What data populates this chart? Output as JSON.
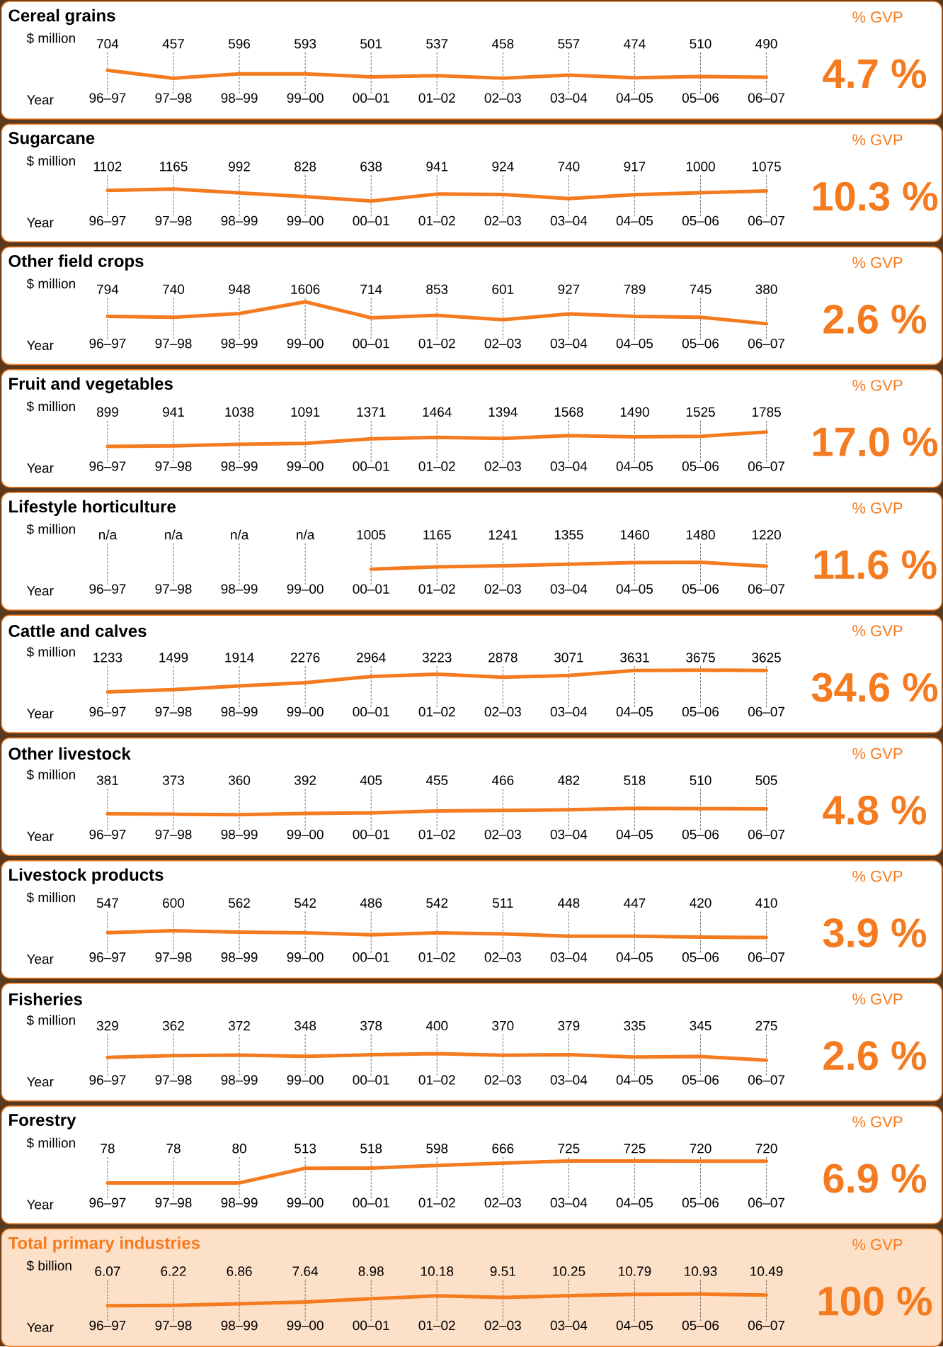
{
  "chart_data": [
    {
      "type": "line",
      "grid": "x",
      "title": "Cereal grains",
      "ylabel": "$ million",
      "xlabel": "Year",
      "annotations": [
        "% GVP",
        "4.7 %"
      ],
      "tick_labels": "x",
      "color": "#f47b20",
      "categories": [
        "96–97",
        "97–98",
        "98–99",
        "99–00",
        "00–01",
        "01–02",
        "02–03",
        "03–04",
        "04–05",
        "05–06",
        "06–07"
      ],
      "values": [
        704,
        457,
        596,
        593,
        501,
        537,
        458,
        557,
        474,
        510,
        490
      ],
      "value_labels": [
        "704",
        "457",
        "596",
        "593",
        "501",
        "537",
        "458",
        "557",
        "474",
        "510",
        "490"
      ]
    },
    {
      "type": "line",
      "grid": "x",
      "title": "Sugarcane",
      "ylabel": "$ million",
      "xlabel": "Year",
      "annotations": [
        "% GVP",
        "10.3 %"
      ],
      "tick_labels": "x",
      "color": "#f47b20",
      "categories": [
        "96–97",
        "97–98",
        "98–99",
        "99–00",
        "00–01",
        "01–02",
        "02–03",
        "03–04",
        "04–05",
        "05–06",
        "06–07"
      ],
      "values": [
        1102,
        1165,
        992,
        828,
        638,
        941,
        924,
        740,
        917,
        1000,
        1075
      ],
      "value_labels": [
        "1102",
        "1165",
        "992",
        "828",
        "638",
        "941",
        "924",
        "740",
        "917",
        "1000",
        "1075"
      ]
    },
    {
      "type": "line",
      "grid": "x",
      "title": "Other field crops",
      "ylabel": "$ million",
      "xlabel": "Year",
      "annotations": [
        "% GVP",
        "2.6 %"
      ],
      "tick_labels": "x",
      "color": "#f47b20",
      "categories": [
        "96–97",
        "97–98",
        "98–99",
        "99–00",
        "00–01",
        "01–02",
        "02–03",
        "03–04",
        "04–05",
        "05–06",
        "06–07"
      ],
      "values": [
        794,
        740,
        948,
        1606,
        714,
        853,
        601,
        927,
        789,
        745,
        380
      ],
      "value_labels": [
        "794",
        "740",
        "948",
        "1606",
        "714",
        "853",
        "601",
        "927",
        "789",
        "745",
        "380"
      ]
    },
    {
      "type": "line",
      "grid": "x",
      "title": "Fruit and vegetables",
      "ylabel": "$ million",
      "xlabel": "Year",
      "annotations": [
        "% GVP",
        "17.0 %"
      ],
      "tick_labels": "x",
      "color": "#f47b20",
      "categories": [
        "96–97",
        "97–98",
        "98–99",
        "99–00",
        "00–01",
        "01–02",
        "02–03",
        "03–04",
        "04–05",
        "05–06",
        "06–07"
      ],
      "values": [
        899,
        941,
        1038,
        1091,
        1371,
        1464,
        1394,
        1568,
        1490,
        1525,
        1785
      ],
      "value_labels": [
        "899",
        "941",
        "1038",
        "1091",
        "1371",
        "1464",
        "1394",
        "1568",
        "1490",
        "1525",
        "1785"
      ]
    },
    {
      "type": "line",
      "grid": "x",
      "title": "Lifestyle horticulture",
      "ylabel": "$ million",
      "xlabel": "Year",
      "annotations": [
        "% GVP",
        "11.6 %"
      ],
      "tick_labels": "x",
      "color": "#f47b20",
      "categories": [
        "96–97",
        "97–98",
        "98–99",
        "99–00",
        "00–01",
        "01–02",
        "02–03",
        "03–04",
        "04–05",
        "05–06",
        "06–07"
      ],
      "values": [
        null,
        null,
        null,
        null,
        1005,
        1165,
        1241,
        1355,
        1460,
        1480,
        1220
      ],
      "value_labels": [
        "n/a",
        "n/a",
        "n/a",
        "n/a",
        "1005",
        "1165",
        "1241",
        "1355",
        "1460",
        "1480",
        "1220"
      ]
    },
    {
      "type": "line",
      "grid": "x",
      "title": "Cattle and calves",
      "ylabel": "$ million",
      "xlabel": "Year",
      "annotations": [
        "% GVP",
        "34.6 %"
      ],
      "tick_labels": "x",
      "color": "#f47b20",
      "categories": [
        "96–97",
        "97–98",
        "98–99",
        "99–00",
        "00–01",
        "01–02",
        "02–03",
        "03–04",
        "04–05",
        "05–06",
        "06–07"
      ],
      "values": [
        1233,
        1499,
        1914,
        2276,
        2964,
        3223,
        2878,
        3071,
        3631,
        3675,
        3625
      ],
      "value_labels": [
        "1233",
        "1499",
        "1914",
        "2276",
        "2964",
        "3223",
        "2878",
        "3071",
        "3631",
        "3675",
        "3625"
      ]
    },
    {
      "type": "line",
      "grid": "x",
      "title": "Other livestock",
      "ylabel": "$ million",
      "xlabel": "Year",
      "annotations": [
        "% GVP",
        "4.8 %"
      ],
      "tick_labels": "x",
      "color": "#f47b20",
      "categories": [
        "96–97",
        "97–98",
        "98–99",
        "99–00",
        "00–01",
        "01–02",
        "02–03",
        "03–04",
        "04–05",
        "05–06",
        "06–07"
      ],
      "values": [
        381,
        373,
        360,
        392,
        405,
        455,
        466,
        482,
        518,
        510,
        505
      ],
      "value_labels": [
        "381",
        "373",
        "360",
        "392",
        "405",
        "455",
        "466",
        "482",
        "518",
        "510",
        "505"
      ]
    },
    {
      "type": "line",
      "grid": "x",
      "title": "Livestock products",
      "ylabel": "$ million",
      "xlabel": "Year",
      "annotations": [
        "% GVP",
        "3.9 %"
      ],
      "tick_labels": "x",
      "color": "#f47b20",
      "categories": [
        "96–97",
        "97–98",
        "98–99",
        "99–00",
        "00–01",
        "01–02",
        "02–03",
        "03–04",
        "04–05",
        "05–06",
        "06–07"
      ],
      "values": [
        547,
        600,
        562,
        542,
        486,
        542,
        511,
        448,
        447,
        420,
        410
      ],
      "value_labels": [
        "547",
        "600",
        "562",
        "542",
        "486",
        "542",
        "511",
        "448",
        "447",
        "420",
        "410"
      ]
    },
    {
      "type": "line",
      "grid": "x",
      "title": "Fisheries",
      "ylabel": "$ million",
      "xlabel": "Year",
      "annotations": [
        "% GVP",
        "2.6 %"
      ],
      "tick_labels": "x",
      "color": "#f47b20",
      "categories": [
        "96–97",
        "97–98",
        "98–99",
        "99–00",
        "00–01",
        "01–02",
        "02–03",
        "03–04",
        "04–05",
        "05–06",
        "06–07"
      ],
      "values": [
        329,
        362,
        372,
        348,
        378,
        400,
        370,
        379,
        335,
        345,
        275
      ],
      "value_labels": [
        "329",
        "362",
        "372",
        "348",
        "378",
        "400",
        "370",
        "379",
        "335",
        "345",
        "275"
      ]
    },
    {
      "type": "line",
      "grid": "x",
      "title": "Forestry",
      "ylabel": "$ million",
      "xlabel": "Year",
      "annotations": [
        "% GVP",
        "6.9 %"
      ],
      "tick_labels": "x",
      "color": "#f47b20",
      "categories": [
        "96–97",
        "97–98",
        "98–99",
        "99–00",
        "00–01",
        "01–02",
        "02–03",
        "03–04",
        "04–05",
        "05–06",
        "06–07"
      ],
      "values": [
        78,
        78,
        80,
        513,
        518,
        598,
        666,
        725,
        725,
        720,
        720
      ],
      "value_labels": [
        "78",
        "78",
        "80",
        "513",
        "518",
        "598",
        "666",
        "725",
        "725",
        "720",
        "720"
      ]
    },
    {
      "type": "line",
      "grid": "x",
      "title": "Total primary industries",
      "ylabel": "$ billion",
      "xlabel": "Year",
      "annotations": [
        "% GVP",
        "100 %"
      ],
      "tick_labels": "x",
      "color": "#f47b20",
      "categories": [
        "96–97",
        "97–98",
        "98–99",
        "99–00",
        "00–01",
        "01–02",
        "02–03",
        "03–04",
        "04–05",
        "05–06",
        "06–07"
      ],
      "values": [
        6.07,
        6.22,
        6.86,
        7.64,
        8.98,
        10.18,
        9.51,
        10.25,
        10.79,
        10.93,
        10.49
      ],
      "value_labels": [
        "6.07",
        "6.22",
        "6.86",
        "7.64",
        "8.98",
        "10.18",
        "9.51",
        "10.25",
        "10.79",
        "10.93",
        "10.49"
      ]
    }
  ]
}
